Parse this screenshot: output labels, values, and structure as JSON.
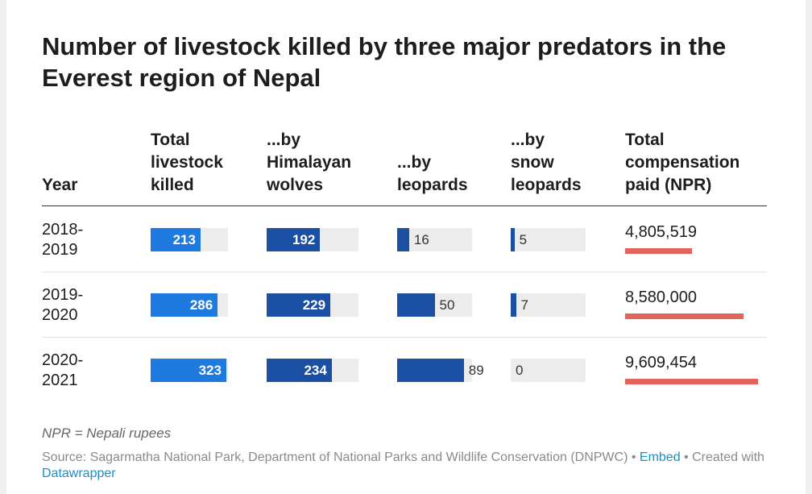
{
  "title": "Number of livestock killed by three major predators in the Everest region of Nepal",
  "colors": {
    "total": "#1f7ae0",
    "wolves": "#1a4fa3",
    "leopards": "#1a4fa3",
    "snow_leopards": "#1a4fa3",
    "compensation": "#e0645c",
    "track": "#ececec"
  },
  "headers": {
    "year": "Year",
    "total": [
      "Total",
      "livestock",
      "killed"
    ],
    "wolves": [
      "...by",
      "Himalayan",
      "wolves"
    ],
    "leopards": [
      "...by",
      "leopards"
    ],
    "snow": [
      "...by",
      "snow",
      "leopards"
    ],
    "comp": [
      "Total",
      "compensation",
      "paid (NPR)"
    ]
  },
  "chart_data": {
    "type": "table",
    "title": "Number of livestock killed by three major predators in the Everest region of Nepal",
    "columns": [
      "Year",
      "Total livestock killed",
      "...by Himalayan wolves",
      "...by leopards",
      "...by snow leopards",
      "Total compensation paid (NPR)"
    ],
    "rows": [
      {
        "year": [
          "2018-",
          "2019"
        ],
        "total": 213,
        "wolves": 192,
        "leopards": 16,
        "snow": 5,
        "comp": 4805519,
        "comp_label": "4,805,519"
      },
      {
        "year": [
          "2019-",
          "2020"
        ],
        "total": 286,
        "wolves": 229,
        "leopards": 50,
        "snow": 7,
        "comp": 8580000,
        "comp_label": "8,580,000"
      },
      {
        "year": [
          "2020-",
          "2021"
        ],
        "total": 323,
        "wolves": 234,
        "leopards": 89,
        "snow": 0,
        "comp": 9609454,
        "comp_label": "9,609,454"
      }
    ],
    "ranges": {
      "total": [
        0,
        330
      ],
      "wolves": [
        0,
        330
      ],
      "leopards": [
        0,
        100
      ],
      "snow": [
        0,
        100
      ],
      "comp": [
        0,
        9900000
      ]
    }
  },
  "footer": {
    "note": "NPR = Nepali rupees",
    "source_prefix": "Source: Sagarmatha National Park, Department of National Parks and Wildlife Conservation (DNPWC) • ",
    "embed": "Embed",
    "created": " • Created with ",
    "datawrapper": "Datawrapper"
  }
}
